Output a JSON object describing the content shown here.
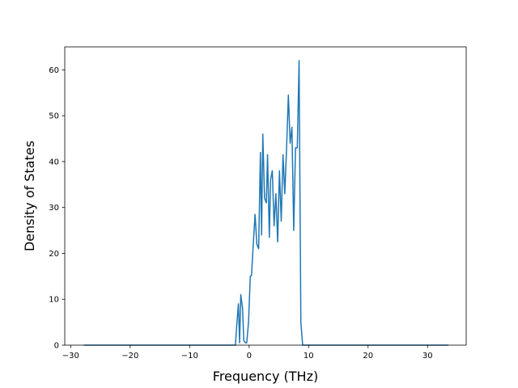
{
  "chart_data": {
    "type": "line",
    "title": "",
    "xlabel": "Frequency (THz)",
    "ylabel": "Density of States",
    "xlim": [
      -31,
      36.5
    ],
    "ylim": [
      0,
      65
    ],
    "xticks": [
      -30,
      -20,
      -10,
      0,
      10,
      20,
      30
    ],
    "yticks": [
      0,
      10,
      20,
      30,
      40,
      50,
      60
    ],
    "xtick_labels": [
      "−30",
      "−20",
      "−10",
      "0",
      "10",
      "20",
      "30"
    ],
    "ytick_labels": [
      "0",
      "10",
      "20",
      "30",
      "40",
      "50",
      "60"
    ],
    "grid": false,
    "legend": "none",
    "series": [
      {
        "color": "#1f77b4",
        "x": [
          -27.8,
          -2.3,
          -2.1,
          -1.8,
          -1.6,
          -1.4,
          -1.1,
          -0.9,
          -0.6,
          -0.4,
          -0.1,
          0.2,
          0.4,
          0.7,
          1.0,
          1.3,
          1.6,
          1.9,
          2.1,
          2.3,
          2.6,
          2.9,
          3.1,
          3.4,
          3.6,
          3.9,
          4.2,
          4.5,
          4.8,
          5.1,
          5.4,
          5.7,
          6.0,
          6.3,
          6.6,
          6.9,
          7.2,
          7.5,
          7.8,
          8.1,
          8.4,
          8.7,
          9.0,
          9.3,
          9.6,
          9.9,
          10.2,
          33.5
        ],
        "y": [
          0,
          0,
          4,
          9,
          0.5,
          11,
          8,
          1,
          0.5,
          0.5,
          5,
          15,
          15.2,
          22,
          28.5,
          22,
          21,
          42,
          24,
          46,
          32,
          31,
          41.5,
          23.5,
          36,
          38,
          26,
          33,
          22.5,
          38,
          27,
          41.5,
          33,
          43,
          54.5,
          44,
          47.5,
          25,
          43,
          43,
          62,
          5,
          0,
          0,
          0,
          0,
          0,
          0
        ]
      }
    ]
  }
}
